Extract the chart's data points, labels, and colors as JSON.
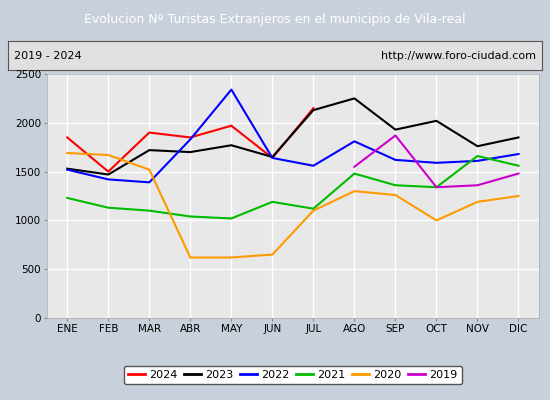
{
  "title": "Evolucion Nº Turistas Extranjeros en el municipio de Vila-real",
  "subtitle_left": "2019 - 2024",
  "subtitle_right": "http://www.foro-ciudad.com",
  "title_bg": "#4a7ec7",
  "title_color": "white",
  "months": [
    "ENE",
    "FEB",
    "MAR",
    "ABR",
    "MAY",
    "JUN",
    "JUL",
    "AGO",
    "SEP",
    "OCT",
    "NOV",
    "DIC"
  ],
  "ylim": [
    0,
    2500
  ],
  "yticks": [
    0,
    500,
    1000,
    1500,
    2000,
    2500
  ],
  "series": {
    "2024": {
      "color": "#ff0000",
      "values": [
        1850,
        1500,
        1900,
        1850,
        1970,
        1640,
        2150,
        null,
        null,
        null,
        null,
        null
      ],
      "linestyle": "-"
    },
    "2023": {
      "color": "#000000",
      "values": [
        1530,
        1470,
        1720,
        1700,
        1770,
        1650,
        2130,
        2250,
        1930,
        2020,
        1760,
        1850
      ],
      "linestyle": "-"
    },
    "2022": {
      "color": "#0000ff",
      "values": [
        1520,
        1420,
        1390,
        1830,
        2340,
        1640,
        1560,
        1810,
        1620,
        1590,
        1610,
        1680
      ],
      "linestyle": "-"
    },
    "2021": {
      "color": "#00bb00",
      "values": [
        1230,
        1130,
        1100,
        1040,
        1020,
        1190,
        1120,
        1480,
        1360,
        1340,
        1660,
        1560
      ],
      "linestyle": "-"
    },
    "2020": {
      "color": "#ff9900",
      "values": [
        1690,
        1670,
        1520,
        620,
        620,
        650,
        1100,
        1300,
        1260,
        1000,
        1190,
        1250
      ],
      "linestyle": "-"
    },
    "2019": {
      "color": "#cc00cc",
      "values": [
        null,
        null,
        null,
        null,
        null,
        null,
        null,
        1550,
        1870,
        1340,
        1360,
        1480
      ],
      "linestyle": "-"
    }
  },
  "legend_order": [
    "2024",
    "2023",
    "2022",
    "2021",
    "2020",
    "2019"
  ],
  "outer_bg": "#c8d0dc",
  "plot_bg": "#e8e8e8",
  "grid_color": "#ffffff",
  "subtitle_bg": "#e0e0e0"
}
